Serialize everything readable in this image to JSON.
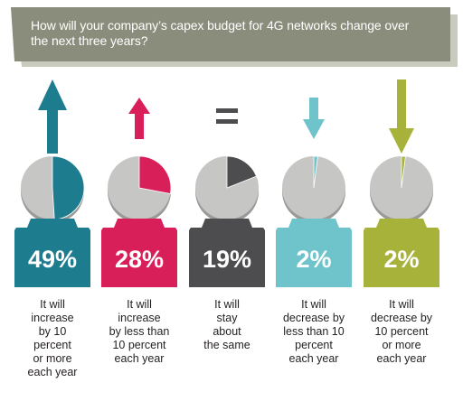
{
  "title": "How will your company’s capex budget for 4G networks change over the next three years?",
  "colors": {
    "banner": "#8a8d7c",
    "banner_shadow": "#c9cbbf",
    "pie_gray": "#c6c6c4",
    "pie_edge": "#9a9a98"
  },
  "chart_data": {
    "type": "pie",
    "title": "How will your company’s capex budget for 4G networks change over the next three years?",
    "unit": "%",
    "categories": [
      "It will increase by 10 percent or more each year",
      "It will increase by less than 10 percent each year",
      "It will stay about the same",
      "It will decrease by less than 10 percent each year",
      "It will decrease by 10 percent or more each year"
    ],
    "series": [
      {
        "value": 49,
        "label": "49%",
        "color": "#1e7c8f",
        "icon": "arrow-up-large-icon",
        "desc": [
          "It will",
          "increase",
          "by 10",
          "percent",
          "or more",
          "each year"
        ]
      },
      {
        "value": 28,
        "label": "28%",
        "color": "#d91f5a",
        "icon": "arrow-up-small-icon",
        "desc": [
          "It will",
          "increase",
          "by less than",
          "10 percent",
          "each year"
        ]
      },
      {
        "value": 19,
        "label": "19%",
        "color": "#4d4d4f",
        "icon": "equals-icon",
        "desc": [
          "It will",
          "stay",
          "about",
          "the same"
        ]
      },
      {
        "value": 2,
        "label": "2%",
        "color": "#6fc4cb",
        "icon": "arrow-down-small-icon",
        "desc": [
          "It will",
          "decrease by",
          "less than 10",
          "percent",
          "each year"
        ]
      },
      {
        "value": 2,
        "label": "2%",
        "color": "#a7b23a",
        "icon": "arrow-down-large-icon",
        "desc": [
          "It will",
          "decrease by",
          "10 percent",
          "or more",
          "each year"
        ]
      }
    ]
  }
}
